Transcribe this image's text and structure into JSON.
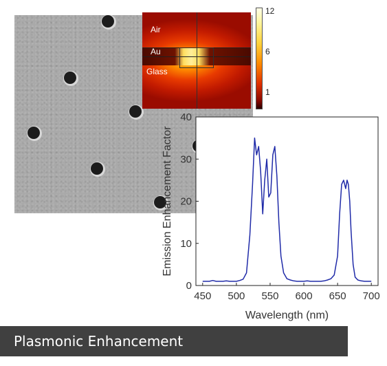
{
  "caption": "Plasmonic Enhancement",
  "field_map": {
    "labels": {
      "air": "Air",
      "au": "Au",
      "glass": "Glass"
    },
    "colorbar_ticks": [
      "12",
      "6",
      "1"
    ],
    "colors": [
      "#2a0000",
      "#8a0800",
      "#e03000",
      "#ff8a00",
      "#ffd23a",
      "#fff59a",
      "#ffffe8"
    ]
  },
  "chart_data": {
    "type": "line",
    "xlabel": "Wavelength (nm)",
    "ylabel": "Emission Enhancement Factor",
    "xlim": [
      440,
      710
    ],
    "ylim": [
      0,
      40
    ],
    "xticks": [
      450,
      500,
      550,
      600,
      650,
      700
    ],
    "yticks": [
      0,
      10,
      20,
      30,
      40
    ],
    "grid": false,
    "line_color": "#1f2aa8",
    "series": [
      {
        "x": [
          450,
          455,
          460,
          465,
          470,
          475,
          480,
          485,
          490,
          495,
          500,
          505,
          510,
          515,
          520,
          524,
          527,
          530,
          533,
          536,
          539,
          542,
          545,
          548,
          551,
          554,
          557,
          560,
          563,
          566,
          570,
          575,
          580,
          585,
          590,
          595,
          600,
          605,
          610,
          615,
          620,
          625,
          630,
          635,
          640,
          645,
          650,
          653,
          656,
          659,
          662,
          664,
          666,
          668,
          670,
          673,
          676,
          680,
          685,
          690,
          695,
          700
        ],
        "y": [
          1,
          1,
          1,
          1.2,
          1,
          1,
          1,
          1.1,
          1,
          1,
          1,
          1.2,
          1.5,
          3,
          12,
          24,
          35,
          31,
          33,
          27,
          17,
          25,
          30,
          21,
          22,
          31,
          33,
          26,
          15,
          7,
          3,
          1.6,
          1.3,
          1.1,
          1,
          1,
          1,
          1.1,
          1,
          1,
          1,
          1,
          1.1,
          1.3,
          1.6,
          2.5,
          7,
          17,
          24,
          25,
          23,
          25,
          24,
          20,
          13,
          5,
          2,
          1.3,
          1.1,
          1,
          1,
          1
        ]
      }
    ]
  }
}
